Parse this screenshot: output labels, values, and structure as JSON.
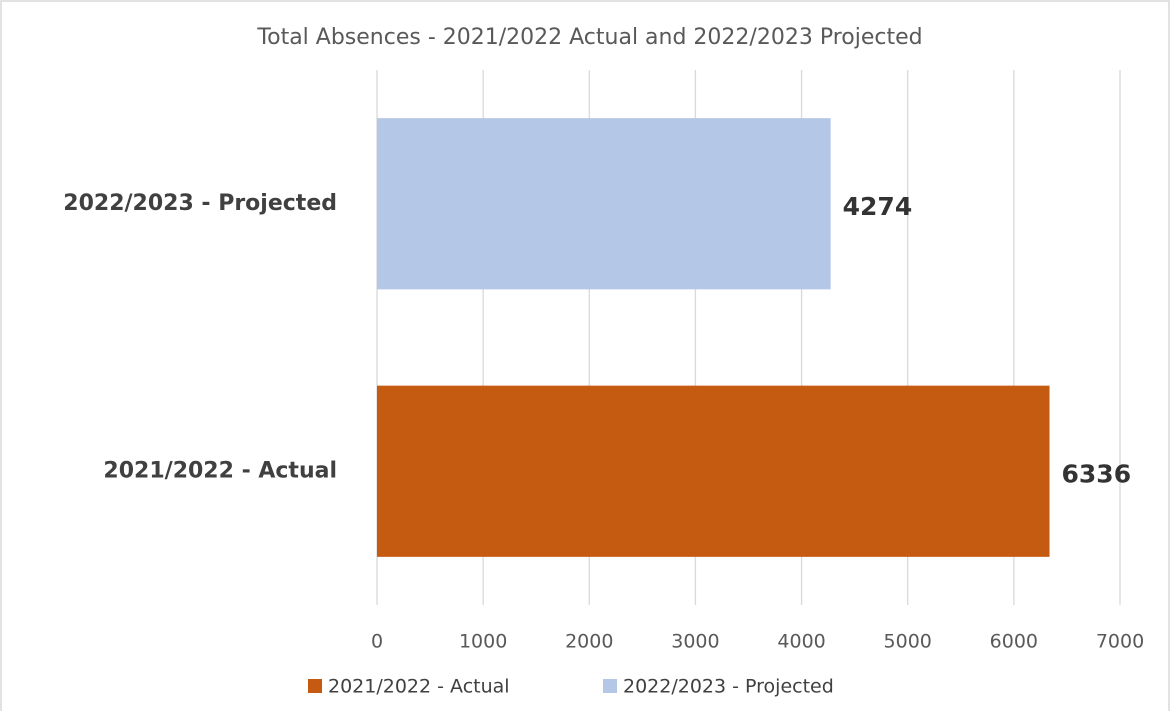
{
  "chart_data": {
    "type": "bar",
    "orientation": "horizontal",
    "title": "Total Absences - 2021/2022 Actual and 2022/2023 Projected",
    "categories": [
      "2021/2022 - Actual",
      "2022/2023 - Projected"
    ],
    "series": [
      {
        "name": "2021/2022 - Actual",
        "color": "#c55a11",
        "values": [
          6336,
          null
        ]
      },
      {
        "name": "2022/2023 - Projected",
        "color": "#b4c7e7",
        "values": [
          null,
          4274
        ]
      }
    ],
    "xlim": [
      0,
      7000
    ],
    "xticks": [
      0,
      1000,
      2000,
      3000,
      4000,
      5000,
      6000,
      7000
    ],
    "grid": true,
    "legend": "bottom"
  }
}
